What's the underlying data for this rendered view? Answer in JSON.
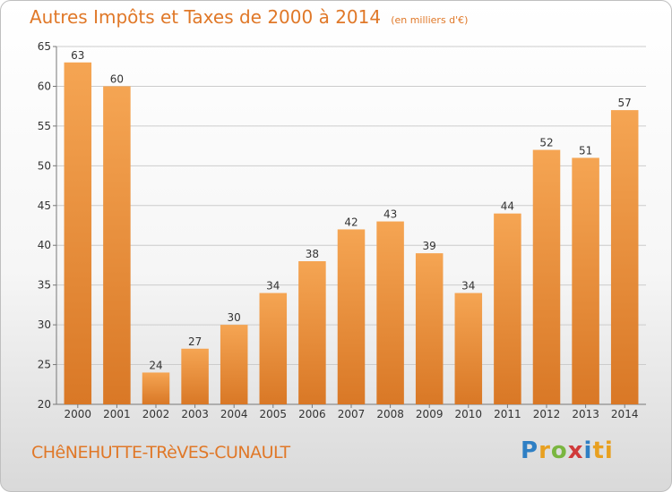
{
  "header": {
    "title": "Autres Impôts et Taxes de 2000 à 2014",
    "subtitle": "(en milliers d'€)"
  },
  "footer": {
    "location": "CHêNEHUTTE-TRèVES-CUNAULT",
    "logo_text": "Proxiti"
  },
  "colors": {
    "accent": "#e07828",
    "bar_top": "#f5a553",
    "bar_bottom": "#d97826",
    "grid": "#cccccc"
  },
  "chart_data": {
    "type": "bar",
    "title": "Autres Impôts et Taxes de 2000 à 2014",
    "subtitle": "(en milliers d'€)",
    "xlabel": "",
    "ylabel": "",
    "categories": [
      "2000",
      "2001",
      "2002",
      "2003",
      "2004",
      "2005",
      "2006",
      "2007",
      "2008",
      "2009",
      "2010",
      "2011",
      "2012",
      "2013",
      "2014"
    ],
    "values": [
      63,
      60,
      24,
      27,
      30,
      34,
      38,
      42,
      43,
      39,
      34,
      44,
      52,
      51,
      57
    ],
    "ylim": [
      20,
      65
    ],
    "yticks": [
      20,
      25,
      30,
      35,
      40,
      45,
      50,
      55,
      60,
      65
    ],
    "grid": true,
    "data_labels": true
  }
}
